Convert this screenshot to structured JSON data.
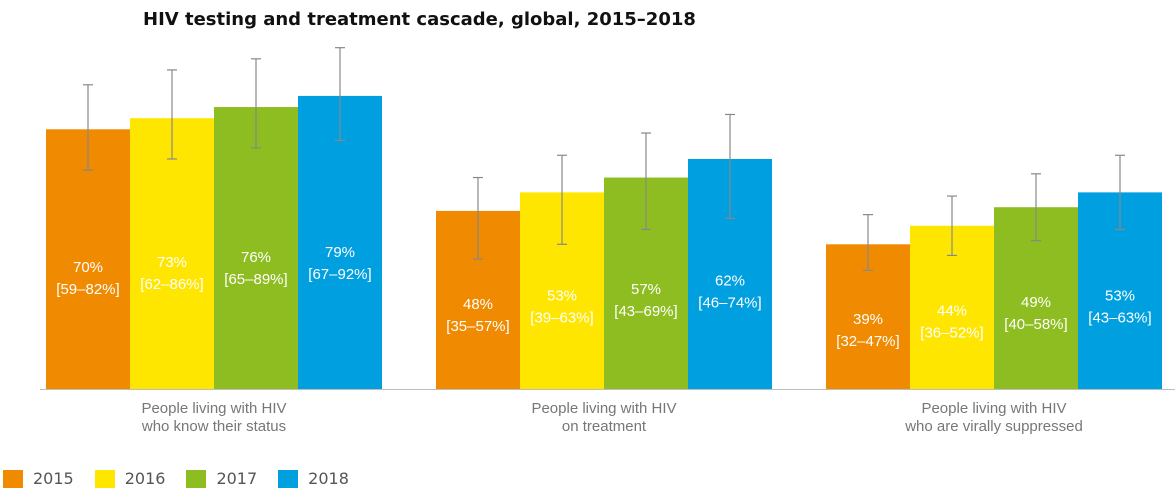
{
  "chart_data": {
    "type": "bar",
    "title": "HIV testing and treatment cascade, global, 2015–2018",
    "categories": [
      [
        "People living with HIV",
        "who know their status"
      ],
      [
        "People living with HIV",
        "on treatment"
      ],
      [
        "People living with HIV",
        "who are virally suppressed"
      ]
    ],
    "ylim": [
      0,
      100
    ],
    "grid": false,
    "legend_position": "bottom-left",
    "series": [
      {
        "name": "2015",
        "color": "#F08A00",
        "values": [
          70,
          48,
          39
        ],
        "lower": [
          59,
          35,
          32
        ],
        "upper": [
          82,
          57,
          47
        ],
        "value_labels": [
          "70%",
          "48%",
          "39%"
        ],
        "range_labels": [
          "[59–82%]",
          "[35–57%]",
          "[32–47%]"
        ]
      },
      {
        "name": "2016",
        "color": "#FFE600",
        "values": [
          73,
          53,
          44
        ],
        "lower": [
          62,
          39,
          36
        ],
        "upper": [
          86,
          63,
          52
        ],
        "value_labels": [
          "73%",
          "53%",
          "44%"
        ],
        "range_labels": [
          "[62–86%]",
          "[39–63%]",
          "[36–52%]"
        ]
      },
      {
        "name": "2017",
        "color": "#8DBD20",
        "values": [
          76,
          57,
          49
        ],
        "lower": [
          65,
          43,
          40
        ],
        "upper": [
          89,
          69,
          58
        ],
        "value_labels": [
          "76%",
          "57%",
          "49%"
        ],
        "range_labels": [
          "[65–89%]",
          "[43–69%]",
          "[40–58%]"
        ]
      },
      {
        "name": "2018",
        "color": "#009FE0",
        "values": [
          79,
          62,
          53
        ],
        "lower": [
          67,
          46,
          43
        ],
        "upper": [
          92,
          74,
          63
        ],
        "value_labels": [
          "79%",
          "62%",
          "53%"
        ],
        "range_labels": [
          "[67–92%]",
          "[46–74%]",
          "[43–63%]"
        ]
      }
    ]
  }
}
